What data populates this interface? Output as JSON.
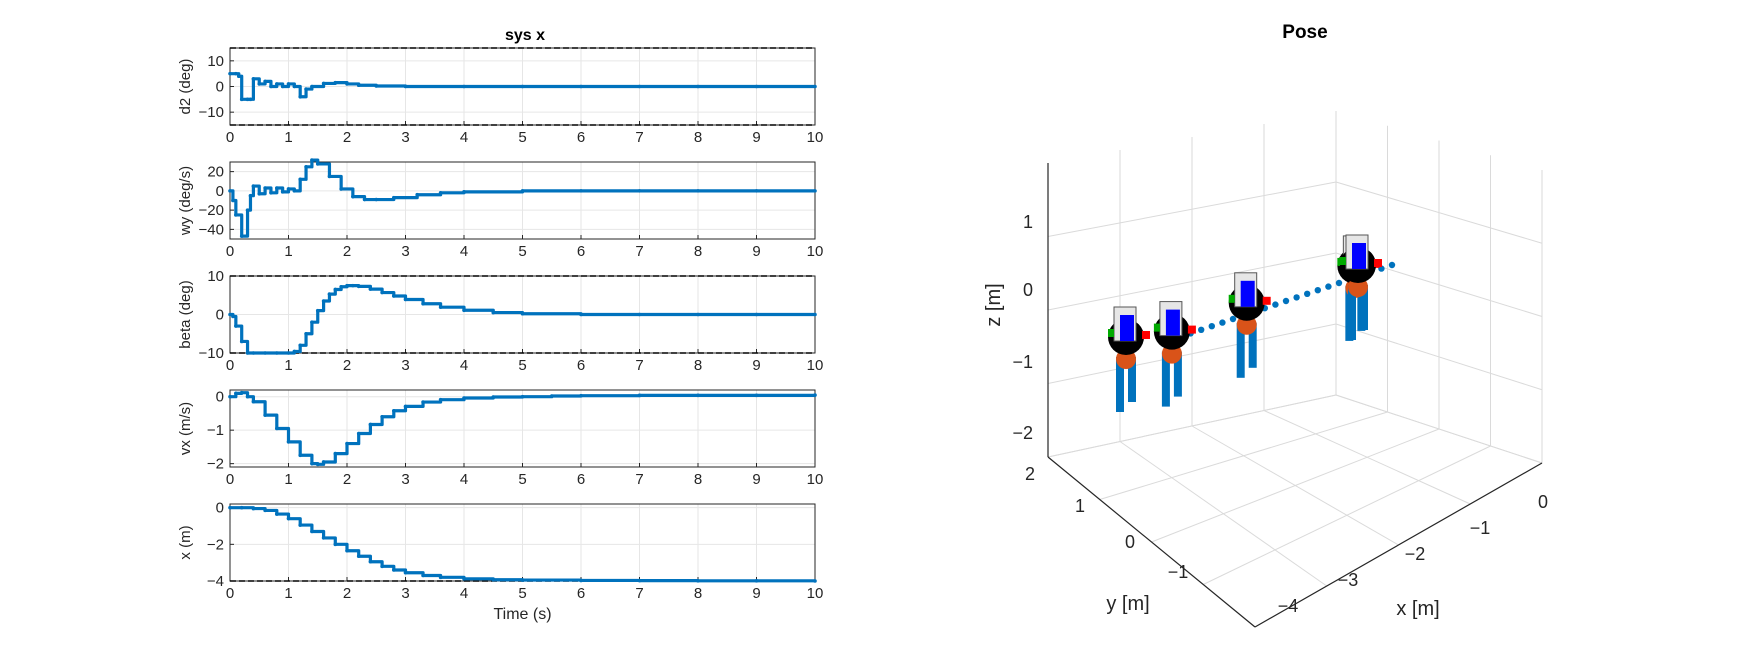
{
  "figure": {
    "left_title": "sys x",
    "right_title": "Pose"
  },
  "chart_data": [
    {
      "type": "line",
      "id": "d2",
      "title": "sys x",
      "xlabel": "",
      "ylabel": "d2 (deg)",
      "xlim": [
        0,
        10
      ],
      "ylim": [
        -15,
        15
      ],
      "xticks": [
        0,
        1,
        2,
        3,
        4,
        5,
        6,
        7,
        8,
        9,
        10
      ],
      "yticks": [
        -10,
        0,
        10
      ],
      "grid": true,
      "limits": [
        -15,
        15
      ],
      "series": [
        {
          "color": "#0072BD",
          "x": [
            0,
            0.1,
            0.15,
            0.2,
            0.3,
            0.35,
            0.4,
            0.5,
            0.6,
            0.7,
            0.8,
            0.9,
            1.0,
            1.1,
            1.2,
            1.3,
            1.4,
            1.6,
            1.8,
            2.0,
            2.2,
            2.5,
            3,
            4,
            5,
            6,
            7,
            8,
            9,
            10
          ],
          "y": [
            5,
            5,
            4,
            -5,
            -5,
            -5,
            3,
            1,
            2,
            0,
            1,
            0,
            1,
            0,
            -4,
            -1,
            0,
            1.2,
            1.5,
            1.0,
            0.5,
            0.2,
            0,
            0,
            0,
            0,
            0,
            0,
            0,
            0
          ]
        }
      ]
    },
    {
      "type": "line",
      "id": "wy",
      "xlabel": "",
      "ylabel": "wy (deg/s)",
      "xlim": [
        0,
        10
      ],
      "ylim": [
        -50,
        30
      ],
      "xticks": [
        0,
        1,
        2,
        3,
        4,
        5,
        6,
        7,
        8,
        9,
        10
      ],
      "yticks": [
        -40,
        -20,
        0,
        20
      ],
      "grid": true,
      "series": [
        {
          "color": "#0072BD",
          "x": [
            0,
            0.05,
            0.1,
            0.2,
            0.3,
            0.35,
            0.4,
            0.5,
            0.6,
            0.7,
            0.8,
            0.9,
            1.0,
            1.1,
            1.2,
            1.3,
            1.4,
            1.5,
            1.7,
            1.9,
            2.1,
            2.3,
            2.5,
            2.8,
            3.2,
            3.6,
            4,
            5,
            6,
            7,
            8,
            9,
            10
          ],
          "y": [
            0,
            -10,
            -25,
            -47,
            -20,
            -5,
            5,
            -3,
            3,
            -2,
            3,
            -1,
            2,
            0,
            12,
            25,
            32,
            28,
            15,
            2,
            -6,
            -9,
            -9,
            -7,
            -4,
            -2,
            -1,
            0,
            0,
            0,
            0,
            0,
            0
          ]
        }
      ]
    },
    {
      "type": "line",
      "id": "beta",
      "xlabel": "",
      "ylabel": "beta (deg)",
      "xlim": [
        0,
        10
      ],
      "ylim": [
        -10,
        10
      ],
      "xticks": [
        0,
        1,
        2,
        3,
        4,
        5,
        6,
        7,
        8,
        9,
        10
      ],
      "yticks": [
        -10,
        0,
        10
      ],
      "grid": true,
      "limits": [
        -10,
        10
      ],
      "series": [
        {
          "color": "#0072BD",
          "x": [
            0,
            0.05,
            0.1,
            0.2,
            0.3,
            0.4,
            0.6,
            0.8,
            1.0,
            1.1,
            1.2,
            1.3,
            1.4,
            1.5,
            1.6,
            1.7,
            1.8,
            1.9,
            2.0,
            2.1,
            2.2,
            2.4,
            2.6,
            2.8,
            3.0,
            3.3,
            3.6,
            4,
            4.5,
            5,
            6,
            7,
            8,
            9,
            10
          ],
          "y": [
            0,
            -0.5,
            -3,
            -7,
            -10,
            -10,
            -10,
            -10,
            -10,
            -9.6,
            -8,
            -5,
            -2,
            1,
            3.5,
            5.3,
            6.5,
            7.2,
            7.5,
            7.5,
            7.3,
            6.6,
            5.7,
            4.8,
            3.9,
            2.8,
            1.9,
            1.1,
            0.5,
            0.2,
            0,
            0,
            0,
            0,
            0
          ]
        }
      ]
    },
    {
      "type": "line",
      "id": "vx",
      "xlabel": "",
      "ylabel": "vx (m/s)",
      "xlim": [
        0,
        10
      ],
      "ylim": [
        -2.1,
        0.2
      ],
      "xticks": [
        0,
        1,
        2,
        3,
        4,
        5,
        6,
        7,
        8,
        9,
        10
      ],
      "yticks": [
        -2,
        -1,
        0
      ],
      "grid": true,
      "series": [
        {
          "color": "#0072BD",
          "x": [
            0,
            0.1,
            0.2,
            0.3,
            0.4,
            0.6,
            0.8,
            1.0,
            1.2,
            1.4,
            1.5,
            1.6,
            1.8,
            2.0,
            2.2,
            2.4,
            2.6,
            2.8,
            3.0,
            3.3,
            3.6,
            4,
            4.5,
            5,
            5.5,
            6,
            7,
            8,
            9,
            10
          ],
          "y": [
            0,
            0.1,
            0.12,
            0,
            -0.15,
            -0.55,
            -0.95,
            -1.35,
            -1.75,
            -2.0,
            -2.02,
            -1.95,
            -1.7,
            -1.4,
            -1.1,
            -0.83,
            -0.6,
            -0.42,
            -0.29,
            -0.16,
            -0.09,
            -0.04,
            -0.01,
            0,
            0.02,
            0.03,
            0.04,
            0.04,
            0.04,
            0.05
          ]
        }
      ]
    },
    {
      "type": "line",
      "id": "x",
      "xlabel": "Time (s)",
      "ylabel": "x (m)",
      "xlim": [
        0,
        10
      ],
      "ylim": [
        -4,
        0.2
      ],
      "xticks": [
        0,
        1,
        2,
        3,
        4,
        5,
        6,
        7,
        8,
        9,
        10
      ],
      "yticks": [
        -4,
        -2,
        0
      ],
      "grid": true,
      "limits": [
        -4
      ],
      "series": [
        {
          "color": "#0072BD",
          "x": [
            0,
            0.2,
            0.4,
            0.6,
            0.8,
            1.0,
            1.2,
            1.4,
            1.6,
            1.8,
            2.0,
            2.2,
            2.4,
            2.6,
            2.8,
            3.0,
            3.3,
            3.6,
            4,
            4.5,
            5,
            6,
            7,
            8,
            9,
            10
          ],
          "y": [
            0,
            0,
            -0.05,
            -0.15,
            -0.35,
            -0.6,
            -0.95,
            -1.3,
            -1.65,
            -2.0,
            -2.35,
            -2.65,
            -2.95,
            -3.2,
            -3.4,
            -3.55,
            -3.7,
            -3.8,
            -3.88,
            -3.93,
            -3.95,
            -3.97,
            -3.98,
            -3.99,
            -3.99,
            -4.0
          ]
        }
      ]
    },
    {
      "type": "scatter",
      "id": "pose3d",
      "title": "Pose",
      "xlabel": "x [m]",
      "ylabel": "y [m]",
      "zlabel": "z [m]",
      "xticks": [
        -4,
        -3,
        -2,
        -1,
        0
      ],
      "yticks": [
        -1,
        0,
        1,
        2
      ],
      "zticks": [
        -2,
        -1,
        0,
        1
      ],
      "grid": true,
      "trajectory": {
        "color": "#0072BD",
        "x": [
          -4,
          -3.8,
          -3.6,
          -3.4,
          -3.2,
          -3.0,
          -2.8,
          -2.6,
          -2.4,
          -2.2,
          -2.0,
          -1.8,
          -1.6,
          -1.4,
          -1.2,
          -1.0,
          -0.8,
          -0.6,
          -0.4,
          -0.2,
          0
        ],
        "y": [
          0,
          0,
          0,
          0,
          0,
          0,
          0,
          0,
          0,
          0,
          0,
          0,
          0,
          0,
          0,
          0,
          0,
          0,
          0,
          0,
          0
        ],
        "z": [
          0,
          0,
          0,
          0,
          0,
          0,
          0,
          0,
          0,
          0,
          0,
          0,
          0,
          0,
          0,
          0,
          0,
          0,
          0,
          0,
          0
        ]
      },
      "bodies_x": [
        -4.0,
        -3.7,
        -2.1,
        -0.05,
        0.0
      ]
    }
  ]
}
